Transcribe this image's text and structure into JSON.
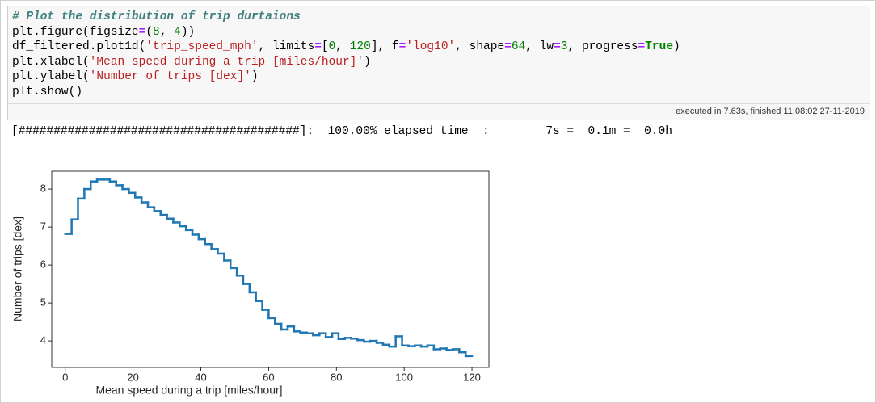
{
  "cell": {
    "code": [
      "# Plot the distribution of trip durtaions",
      "plt.figure(figsize=(8, 4))",
      "df_filtered.plot1d('trip_speed_mph', limits=[0, 120], f='log10', shape=64, lw=3, progress=True)",
      "plt.xlabel('Mean speed during a trip [miles/hour]')",
      "plt.ylabel('Number of trips [dex]')",
      "plt.show()"
    ],
    "execution_note": "executed in 7.63s, finished 11:08:02 27-11-2019",
    "output_text": "[########################################]:  100.00% elapsed time  :        7s =  0.1m =  0.0h"
  },
  "chart_data": {
    "type": "histogram",
    "xlabel": "Mean speed during a trip [miles/hour]",
    "ylabel": "Number of trips [dex]",
    "color": "#1f77b4",
    "bins": [
      0,
      1.875,
      3.75,
      5.625,
      7.5,
      9.375,
      11.25,
      13.125,
      15,
      16.875,
      18.75,
      20.625,
      22.5,
      24.375,
      26.25,
      28.125,
      30,
      31.875,
      33.75,
      35.625,
      37.5,
      39.375,
      41.25,
      43.125,
      45,
      46.875,
      48.75,
      50.625,
      52.5,
      54.375,
      56.25,
      58.125,
      60,
      61.875,
      63.75,
      65.625,
      67.5,
      69.375,
      71.25,
      73.125,
      75,
      76.875,
      78.75,
      80.625,
      82.5,
      84.375,
      86.25,
      88.125,
      90,
      91.875,
      93.75,
      95.625,
      97.5,
      99.375,
      101.25,
      103.125,
      105,
      106.875,
      108.75,
      110.625,
      112.5,
      114.375,
      116.25,
      118.125,
      120
    ],
    "values": [
      6.82,
      7.2,
      7.75,
      8.0,
      8.2,
      8.25,
      8.25,
      8.2,
      8.1,
      8.0,
      7.9,
      7.78,
      7.65,
      7.52,
      7.42,
      7.32,
      7.22,
      7.12,
      7.02,
      6.92,
      6.8,
      6.68,
      6.55,
      6.42,
      6.3,
      6.12,
      5.92,
      5.72,
      5.5,
      5.28,
      5.05,
      4.82,
      4.6,
      4.45,
      4.3,
      4.38,
      4.25,
      4.22,
      4.2,
      4.15,
      4.2,
      4.1,
      4.2,
      4.05,
      4.08,
      4.06,
      4.02,
      3.98,
      4.0,
      3.95,
      3.9,
      3.85,
      4.12,
      3.88,
      3.86,
      3.88,
      3.85,
      3.88,
      3.78,
      3.8,
      3.76,
      3.78,
      3.7,
      3.6
    ],
    "xlim": [
      -4,
      125
    ],
    "ylim": [
      3.3,
      8.47
    ],
    "xticks": [
      0,
      20,
      40,
      60,
      80,
      100,
      120
    ],
    "yticks": [
      4,
      5,
      6,
      7,
      8
    ]
  }
}
